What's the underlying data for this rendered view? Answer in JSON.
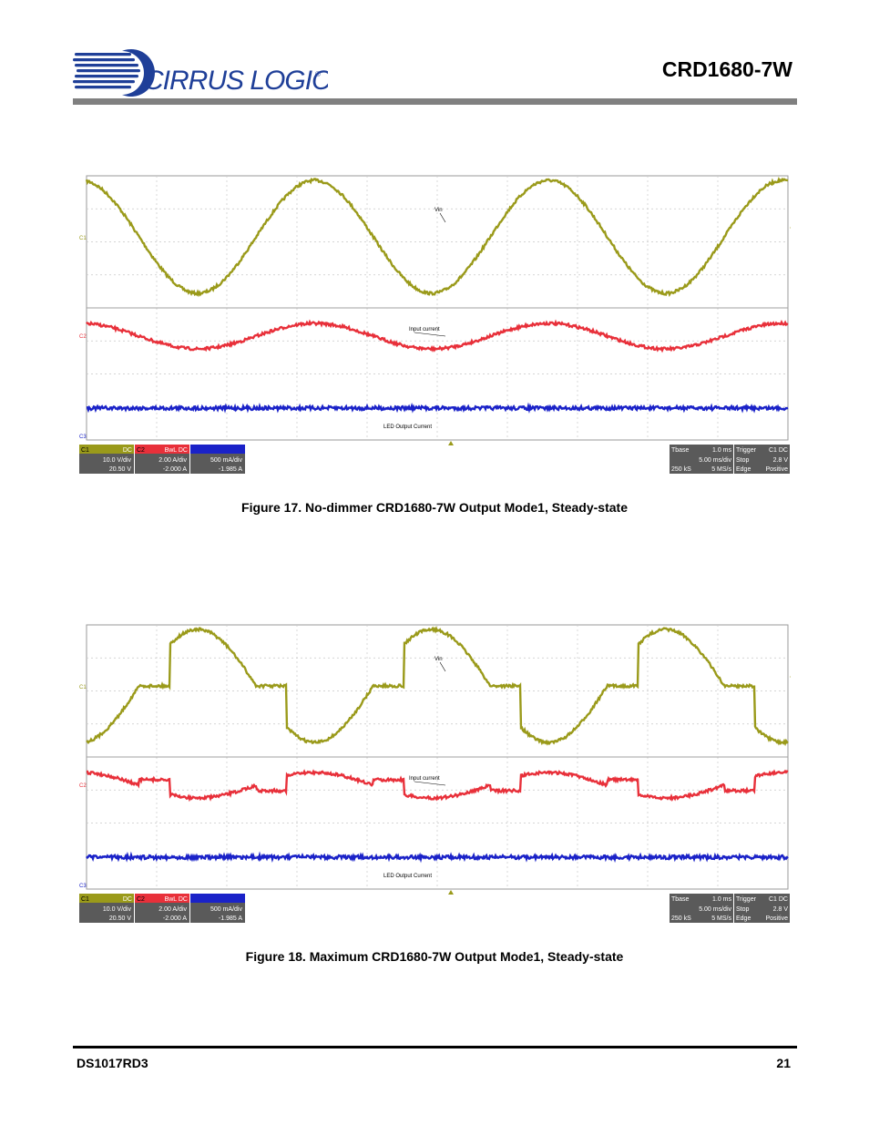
{
  "header": {
    "logo_text": "CIRRUS LOGIC",
    "logo_mark": "®",
    "doc_title": "CRD1680-7W"
  },
  "colors": {
    "trace_vin": "#9a9a1a",
    "trace_input_current": "#e8303a",
    "trace_led_current": "#1a22c8",
    "header_rule": "#808080",
    "logo_blue": "#1f3f98"
  },
  "scope_common": {
    "channel_markers": [
      "C1",
      "C2",
      "C3"
    ],
    "labels": {
      "vin": "Vin",
      "input_current": "Input current",
      "led_output_current": "LED Output Current"
    },
    "readout_left": {
      "c1": {
        "tag": "C1",
        "coupling": "DC",
        "scale": "10.0 V/div",
        "offset": "20.50 V"
      },
      "c2": {
        "tag": "C2",
        "coupling": "BwL DC",
        "scale": "2.00 A/div",
        "offset": "-2.000 A"
      },
      "c3": {
        "tag": "",
        "coupling": "",
        "scale": "500 mA/div",
        "offset": "-1.985 A"
      }
    },
    "readout_right": {
      "timebase": {
        "title": "Tbase",
        "value": "1.0 ms",
        "div": "5.00 ms/div",
        "samples": "250 kS",
        "rate": "5 MS/s"
      },
      "trigger": {
        "title": "Trigger",
        "source": "C1 DC",
        "mode": "Stop",
        "level": "2.8 V",
        "type": "Edge",
        "slope": "Positive"
      }
    }
  },
  "figures": [
    {
      "id": "figure-17",
      "caption": "Figure 17.  No-dimmer CRD1680-7W Output Mode1, Steady-state",
      "waveform": "sine"
    },
    {
      "id": "figure-18",
      "caption": "Figure 18.  Maximum CRD1680-7W Output Mode1, Steady-state",
      "waveform": "dimmed"
    }
  ],
  "footer": {
    "doc_id": "DS1017RD3",
    "page_number": "21"
  }
}
